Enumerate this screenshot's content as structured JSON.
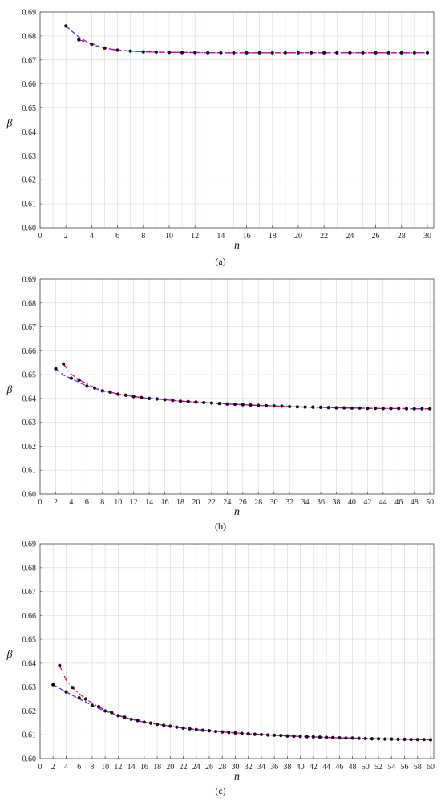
{
  "colors": {
    "grid": "#dcdcdc",
    "frame": "#555555",
    "series_magenta": "#e0008c",
    "series_purple": "#6a2bd9",
    "points": "#111111"
  },
  "chart_data": [
    {
      "type": "line",
      "caption": "(a)",
      "xlabel": "n",
      "ylabel": "β",
      "xlim": [
        0,
        30.5
      ],
      "ylim": [
        0.6,
        0.69
      ],
      "xticks": [
        "0",
        "2",
        "4",
        "6",
        "8",
        "10",
        "12",
        "14",
        "16",
        "18",
        "20",
        "22",
        "24",
        "26",
        "28",
        "30"
      ],
      "yticks": [
        "0.60",
        "0.61",
        "0.62",
        "0.63",
        "0.64",
        "0.65",
        "0.66",
        "0.67",
        "0.68",
        "0.69"
      ],
      "xgrid_step": 1,
      "points": {
        "x": [
          2,
          3,
          4,
          5,
          6,
          7,
          8,
          9,
          10,
          11,
          12,
          13,
          14,
          15,
          16,
          17,
          18,
          19,
          20,
          21,
          22,
          23,
          24,
          25,
          26,
          27,
          28,
          29,
          30
        ],
        "y": [
          0.6842,
          0.6784,
          0.6766,
          0.675,
          0.6741,
          0.6737,
          0.6734,
          0.6733,
          0.6732,
          0.6731,
          0.6731,
          0.673,
          0.673,
          0.673,
          0.673,
          0.673,
          0.673,
          0.673,
          0.673,
          0.673,
          0.673,
          0.673,
          0.673,
          0.673,
          0.673,
          0.673,
          0.673,
          0.673,
          0.673
        ]
      },
      "series": [
        {
          "style": "dash",
          "color": "#6a2bd9",
          "x": [
            2,
            3,
            4,
            5,
            6,
            7,
            8,
            10,
            12,
            14,
            16,
            18,
            20,
            22,
            24,
            26,
            28,
            30
          ],
          "y": [
            0.6842,
            0.6795,
            0.6765,
            0.6749,
            0.6741,
            0.6737,
            0.6734,
            0.6732,
            0.6731,
            0.673,
            0.673,
            0.673,
            0.673,
            0.673,
            0.673,
            0.673,
            0.673,
            0.673
          ]
        },
        {
          "style": "dashdot",
          "color": "#e0008c",
          "x": [
            3,
            4,
            5,
            6,
            7,
            8,
            10,
            12,
            14,
            16,
            18,
            20,
            22,
            24,
            26,
            28,
            30
          ],
          "y": [
            0.6784,
            0.6768,
            0.675,
            0.6741,
            0.6737,
            0.6734,
            0.6732,
            0.6731,
            0.673,
            0.673,
            0.673,
            0.673,
            0.673,
            0.673,
            0.673,
            0.673,
            0.673
          ]
        }
      ]
    },
    {
      "type": "line",
      "caption": "(b)",
      "xlabel": "n",
      "ylabel": "β",
      "xlim": [
        0,
        50.5
      ],
      "ylim": [
        0.6,
        0.69
      ],
      "xticks": [
        "0",
        "2",
        "4",
        "6",
        "8",
        "10",
        "12",
        "14",
        "16",
        "18",
        "20",
        "22",
        "24",
        "26",
        "28",
        "30",
        "32",
        "34",
        "36",
        "38",
        "40",
        "42",
        "44",
        "46",
        "48",
        "50"
      ],
      "yticks": [
        "0.60",
        "0.61",
        "0.62",
        "0.63",
        "0.64",
        "0.65",
        "0.66",
        "0.67",
        "0.68",
        "0.69"
      ],
      "xgrid_step": 2,
      "points": {
        "x": [
          2,
          3,
          4,
          5,
          6,
          7,
          8,
          9,
          10,
          11,
          12,
          13,
          14,
          15,
          16,
          17,
          18,
          19,
          20,
          21,
          22,
          23,
          24,
          25,
          26,
          27,
          28,
          29,
          30,
          31,
          32,
          33,
          34,
          35,
          36,
          37,
          38,
          39,
          40,
          41,
          42,
          43,
          44,
          45,
          46,
          47,
          48,
          49,
          50
        ],
        "y": [
          0.6525,
          0.6545,
          0.6485,
          0.6478,
          0.6452,
          0.6444,
          0.6432,
          0.6427,
          0.6418,
          0.6414,
          0.6408,
          0.6404,
          0.64,
          0.6398,
          0.6395,
          0.6392,
          0.6389,
          0.6387,
          0.6385,
          0.6383,
          0.6381,
          0.6379,
          0.6377,
          0.6376,
          0.6374,
          0.6373,
          0.6371,
          0.637,
          0.6369,
          0.6368,
          0.6366,
          0.6365,
          0.6364,
          0.6364,
          0.6363,
          0.6362,
          0.6361,
          0.6361,
          0.636,
          0.636,
          0.6359,
          0.6359,
          0.6358,
          0.6358,
          0.6358,
          0.6357,
          0.6357,
          0.6357,
          0.6357
        ]
      },
      "series": [
        {
          "style": "dash",
          "color": "#6a2bd9",
          "x": [
            2,
            3,
            4,
            5,
            6,
            7,
            8,
            10,
            12,
            14,
            16,
            18,
            20,
            22,
            24,
            26,
            28,
            30,
            32,
            34,
            36,
            38,
            40,
            42,
            44,
            46,
            48,
            50
          ],
          "y": [
            0.6525,
            0.6498,
            0.6484,
            0.6468,
            0.6452,
            0.6443,
            0.6432,
            0.6418,
            0.6408,
            0.64,
            0.6395,
            0.6389,
            0.6385,
            0.6381,
            0.6377,
            0.6374,
            0.6371,
            0.6369,
            0.6366,
            0.6364,
            0.6363,
            0.6361,
            0.636,
            0.6359,
            0.6358,
            0.6358,
            0.6357,
            0.6357
          ]
        },
        {
          "style": "dashdot",
          "color": "#e0008c",
          "x": [
            3,
            4,
            5,
            6,
            7,
            8,
            10,
            12,
            14,
            16,
            18,
            20,
            22,
            24,
            26,
            28,
            30,
            32,
            34,
            36,
            38,
            40,
            42,
            44,
            46,
            48,
            50
          ],
          "y": [
            0.6545,
            0.6502,
            0.6478,
            0.6462,
            0.6446,
            0.6434,
            0.6419,
            0.6408,
            0.64,
            0.6395,
            0.6389,
            0.6385,
            0.6381,
            0.6377,
            0.6374,
            0.6371,
            0.6369,
            0.6366,
            0.6364,
            0.6363,
            0.6361,
            0.636,
            0.6359,
            0.6358,
            0.6358,
            0.6357,
            0.6357
          ]
        }
      ]
    },
    {
      "type": "line",
      "caption": "(c)",
      "xlabel": "n",
      "ylabel": "β",
      "xlim": [
        0,
        60.5
      ],
      "ylim": [
        0.6,
        0.69
      ],
      "xticks": [
        "0",
        "2",
        "4",
        "6",
        "8",
        "10",
        "12",
        "14",
        "16",
        "18",
        "20",
        "22",
        "24",
        "26",
        "28",
        "30",
        "32",
        "34",
        "36",
        "38",
        "40",
        "42",
        "44",
        "46",
        "48",
        "50",
        "52",
        "54",
        "56",
        "58",
        "60"
      ],
      "yticks": [
        "0.60",
        "0.61",
        "0.62",
        "0.63",
        "0.64",
        "0.65",
        "0.66",
        "0.67",
        "0.68",
        "0.69"
      ],
      "xgrid_step": 2,
      "points": {
        "x": [
          2,
          3,
          4,
          5,
          6,
          7,
          8,
          9,
          10,
          11,
          12,
          13,
          14,
          15,
          16,
          17,
          18,
          19,
          20,
          21,
          22,
          23,
          24,
          25,
          26,
          27,
          28,
          29,
          30,
          31,
          32,
          33,
          34,
          35,
          36,
          37,
          38,
          39,
          40,
          41,
          42,
          43,
          44,
          45,
          46,
          47,
          48,
          49,
          50,
          51,
          52,
          53,
          54,
          55,
          56,
          57,
          58,
          59,
          60
        ],
        "y": [
          0.631,
          0.639,
          0.628,
          0.6298,
          0.6255,
          0.625,
          0.6222,
          0.6218,
          0.62,
          0.6193,
          0.618,
          0.6174,
          0.6165,
          0.616,
          0.6153,
          0.6149,
          0.6144,
          0.614,
          0.6136,
          0.6132,
          0.6128,
          0.6125,
          0.6122,
          0.6119,
          0.6117,
          0.6114,
          0.6112,
          0.611,
          0.6108,
          0.6106,
          0.6104,
          0.6102,
          0.6101,
          0.6099,
          0.6098,
          0.6097,
          0.6095,
          0.6094,
          0.6093,
          0.6092,
          0.6091,
          0.609,
          0.6089,
          0.6088,
          0.6087,
          0.6086,
          0.6086,
          0.6085,
          0.6084,
          0.6083,
          0.6083,
          0.6082,
          0.6082,
          0.6081,
          0.6081,
          0.608,
          0.608,
          0.608,
          0.6079
        ]
      },
      "series": [
        {
          "style": "dash",
          "color": "#6a2bd9",
          "x": [
            2,
            3,
            4,
            5,
            6,
            7,
            8,
            10,
            12,
            14,
            16,
            18,
            20,
            22,
            24,
            26,
            28,
            30,
            32,
            34,
            36,
            38,
            40,
            42,
            44,
            46,
            48,
            50,
            52,
            54,
            56,
            58,
            60
          ],
          "y": [
            0.631,
            0.6295,
            0.628,
            0.6265,
            0.625,
            0.6238,
            0.6222,
            0.62,
            0.618,
            0.6165,
            0.6153,
            0.6144,
            0.6136,
            0.6128,
            0.6122,
            0.6117,
            0.6112,
            0.6108,
            0.6104,
            0.6101,
            0.6098,
            0.6095,
            0.6093,
            0.6091,
            0.6089,
            0.6087,
            0.6086,
            0.6084,
            0.6083,
            0.6082,
            0.6081,
            0.608,
            0.6079
          ]
        },
        {
          "style": "dashdot",
          "color": "#e0008c",
          "x": [
            3,
            4,
            5,
            6,
            7,
            8,
            10,
            12,
            14,
            16,
            18,
            20,
            22,
            24,
            26,
            28,
            30,
            32,
            34,
            36,
            38,
            40,
            42,
            44,
            46,
            48,
            50,
            52,
            54,
            56,
            58,
            60
          ],
          "y": [
            0.639,
            0.633,
            0.6298,
            0.6272,
            0.6252,
            0.6232,
            0.6203,
            0.6181,
            0.6166,
            0.6153,
            0.6144,
            0.6136,
            0.6128,
            0.6122,
            0.6117,
            0.6112,
            0.6108,
            0.6104,
            0.6101,
            0.6098,
            0.6095,
            0.6093,
            0.6091,
            0.6089,
            0.6087,
            0.6086,
            0.6084,
            0.6083,
            0.6082,
            0.6081,
            0.608,
            0.6079
          ]
        }
      ]
    }
  ]
}
